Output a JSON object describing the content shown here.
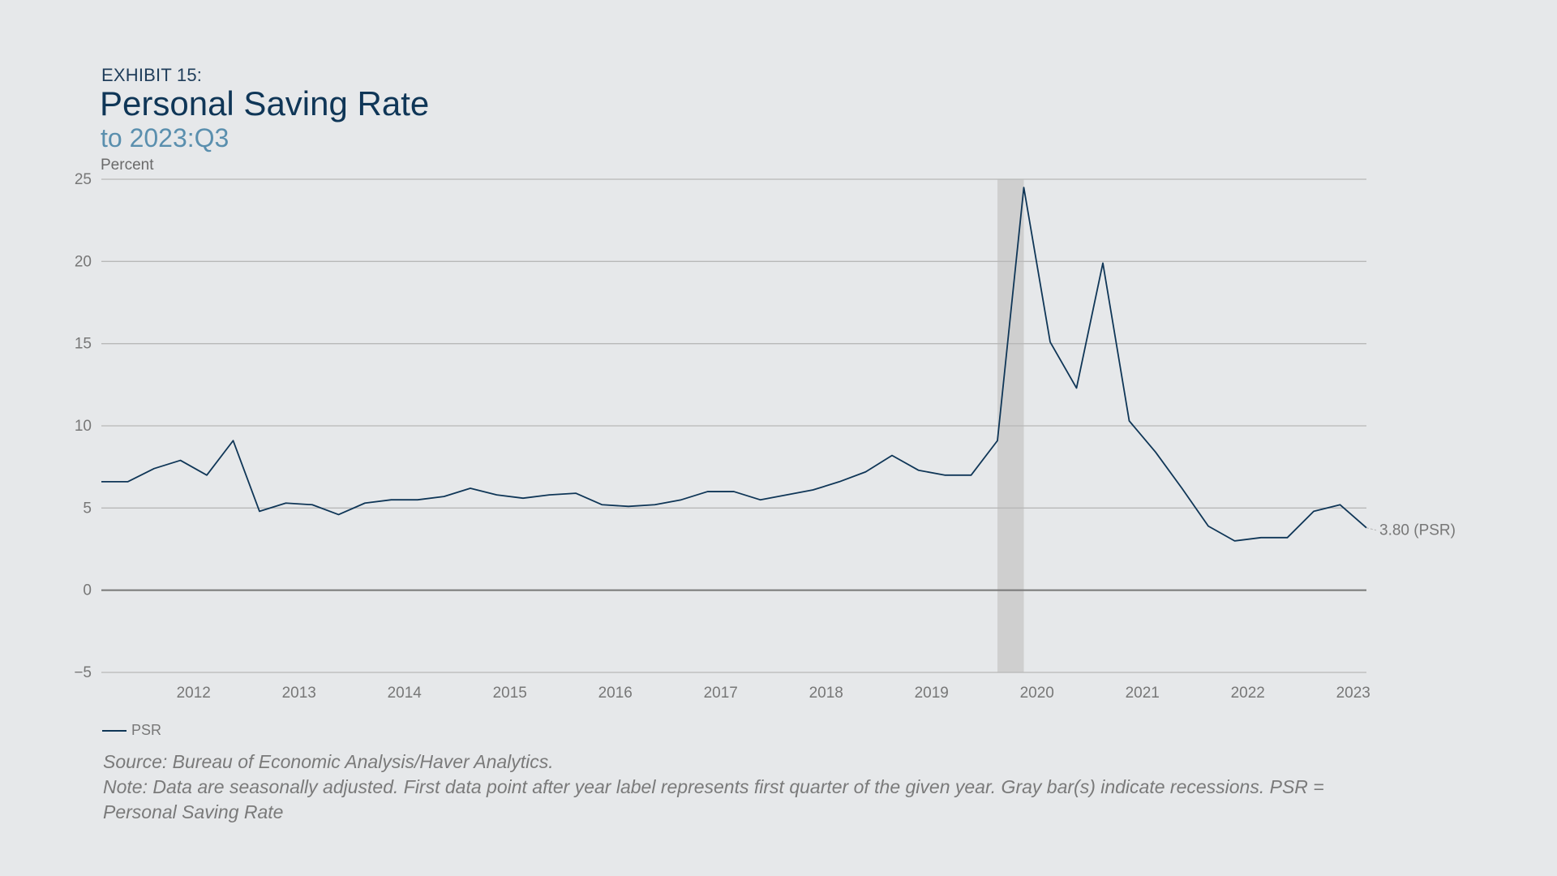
{
  "header": {
    "exhibit": "EXHIBIT 15:",
    "title": "Personal Saving Rate",
    "subtitle": "to 2023:Q3"
  },
  "legend": {
    "items": [
      {
        "label": "PSR"
      }
    ]
  },
  "footnotes": {
    "source": "Source: Bureau of Economic Analysis/Haver Analytics.",
    "note": "Note: Data are seasonally adjusted. First data point after year label represents first quarter of the given year. Gray bar(s) indicate recessions. PSR = Personal Saving Rate"
  },
  "colors": {
    "line": "#0f3657",
    "grid": "#b8b8b8",
    "zero_line": "#777777",
    "recession": "#cfcfcf",
    "tick_text": "#777777"
  },
  "chart_data": {
    "type": "line",
    "title": "Personal Saving Rate",
    "subtitle": "to 2023:Q3",
    "ylabel": "Percent",
    "xlabel": "",
    "ylim": [
      -5,
      25
    ],
    "yticks": [
      -5,
      0,
      5,
      10,
      15,
      20,
      25
    ],
    "xlim": [
      "2011:Q3",
      "2023:Q3"
    ],
    "xticks": [
      "2012",
      "2013",
      "2014",
      "2015",
      "2016",
      "2017",
      "2018",
      "2019",
      "2020",
      "2021",
      "2022",
      "2023"
    ],
    "grid": true,
    "legend_position": "bottom-left",
    "recessions": [
      {
        "start": "2020:Q1",
        "end": "2020:Q2"
      }
    ],
    "end_label": "3.80 (PSR)",
    "x": [
      "2011:Q3",
      "2011:Q4",
      "2012:Q1",
      "2012:Q2",
      "2012:Q3",
      "2012:Q4",
      "2013:Q1",
      "2013:Q2",
      "2013:Q3",
      "2013:Q4",
      "2014:Q1",
      "2014:Q2",
      "2014:Q3",
      "2014:Q4",
      "2015:Q1",
      "2015:Q2",
      "2015:Q3",
      "2015:Q4",
      "2016:Q1",
      "2016:Q2",
      "2016:Q3",
      "2016:Q4",
      "2017:Q1",
      "2017:Q2",
      "2017:Q3",
      "2017:Q4",
      "2018:Q1",
      "2018:Q2",
      "2018:Q3",
      "2018:Q4",
      "2019:Q1",
      "2019:Q2",
      "2019:Q3",
      "2019:Q4",
      "2020:Q1",
      "2020:Q2",
      "2020:Q3",
      "2020:Q4",
      "2021:Q1",
      "2021:Q2",
      "2021:Q3",
      "2021:Q4",
      "2022:Q1",
      "2022:Q2",
      "2022:Q3",
      "2022:Q4",
      "2023:Q1",
      "2023:Q2",
      "2023:Q3"
    ],
    "series": [
      {
        "name": "PSR",
        "values": [
          6.6,
          6.6,
          7.4,
          7.9,
          7.0,
          9.1,
          4.8,
          5.3,
          5.2,
          4.6,
          5.3,
          5.5,
          5.5,
          5.7,
          6.2,
          5.8,
          5.6,
          5.8,
          5.9,
          5.2,
          5.1,
          5.2,
          5.5,
          6.0,
          6.0,
          5.5,
          5.8,
          6.1,
          6.6,
          7.2,
          8.2,
          7.3,
          7.0,
          7.0,
          9.1,
          24.5,
          15.1,
          12.3,
          19.9,
          10.3,
          8.4,
          6.2,
          3.9,
          3.0,
          3.2,
          3.2,
          4.8,
          5.2,
          3.8
        ]
      }
    ]
  }
}
